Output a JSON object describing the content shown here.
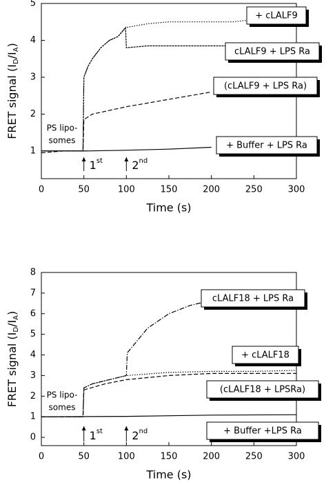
{
  "chart_data": [
    {
      "type": "line",
      "xlabel": "Time (s)",
      "ylabel": [
        "FRET signal (I",
        "D",
        "/I",
        "A",
        ")"
      ],
      "xlim": [
        0,
        300
      ],
      "ylim": [
        0.25,
        5
      ],
      "xticks": [
        0,
        50,
        100,
        150,
        200,
        250,
        300
      ],
      "yticks": [
        1,
        2,
        3,
        4,
        5
      ],
      "series": [
        {
          "name": "+ cLALF9",
          "color": "#000000",
          "linestyle": "dotted",
          "x": [
            0,
            25,
            49,
            50,
            55,
            60,
            70,
            80,
            90,
            100,
            125,
            150,
            175,
            200,
            225,
            245
          ],
          "values": [
            1.0,
            1.0,
            1.0,
            3.0,
            3.3,
            3.5,
            3.8,
            4.0,
            4.1,
            4.35,
            4.45,
            4.5,
            4.5,
            4.5,
            4.5,
            4.55
          ]
        },
        {
          "name": "cLALF9 + LPS Ra",
          "color": "#000000",
          "linestyle": "densely-dotted",
          "x": [
            0,
            25,
            49,
            50,
            55,
            60,
            70,
            80,
            90,
            99,
            100,
            125,
            150,
            175,
            200,
            225,
            245
          ],
          "values": [
            1.0,
            1.0,
            1.0,
            3.0,
            3.3,
            3.5,
            3.8,
            4.0,
            4.1,
            4.35,
            3.8,
            3.85,
            3.85,
            3.85,
            3.85,
            3.85,
            3.85
          ]
        },
        {
          "name": "(cLALF9 + LPS Ra)",
          "color": "#000000",
          "linestyle": "dashed",
          "x": [
            0,
            25,
            49,
            50,
            60,
            80,
            100,
            125,
            150,
            175,
            200
          ],
          "values": [
            0.95,
            1.0,
            1.0,
            1.85,
            2.0,
            2.1,
            2.2,
            2.3,
            2.4,
            2.5,
            2.6
          ]
        },
        {
          "name": "+ Buffer + LPS Ra",
          "color": "#000000",
          "linestyle": "solid",
          "x": [
            0,
            50,
            100,
            150,
            200
          ],
          "values": [
            1.0,
            1.0,
            1.02,
            1.05,
            1.1
          ]
        }
      ],
      "annotation": [
        "PS lipo-",
        "somes"
      ],
      "arrows": [
        {
          "x": 50,
          "label": "1",
          "sup": "st"
        },
        {
          "x": 100,
          "label": "2",
          "sup": "nd"
        }
      ]
    },
    {
      "type": "line",
      "xlabel": "Time (s)",
      "ylabel": [
        "FRET signal (I",
        "D",
        "/I",
        "A",
        ")"
      ],
      "xlim": [
        0,
        300
      ],
      "ylim": [
        -0.4,
        8
      ],
      "xticks": [
        0,
        50,
        100,
        150,
        200,
        250,
        300
      ],
      "yticks": [
        0,
        1,
        2,
        3,
        4,
        5,
        6,
        7,
        8
      ],
      "series": [
        {
          "name": "cLALF18 + LPS Ra",
          "color": "#000000",
          "linestyle": "dash-dot",
          "x": [
            0,
            49,
            50,
            60,
            80,
            100,
            101,
            125,
            150,
            175,
            195
          ],
          "values": [
            1.0,
            1.0,
            2.4,
            2.6,
            2.8,
            3.0,
            4.1,
            5.3,
            6.0,
            6.4,
            6.6
          ]
        },
        {
          "name": "+ cLALF18",
          "color": "#000000",
          "linestyle": "dotted",
          "x": [
            0,
            49,
            50,
            60,
            80,
            100,
            150,
            200,
            250,
            300
          ],
          "values": [
            1.0,
            1.0,
            2.4,
            2.6,
            2.8,
            3.0,
            3.15,
            3.2,
            3.2,
            3.25
          ]
        },
        {
          "name": "(cLALF18 + LPSRa)",
          "color": "#000000",
          "linestyle": "dashed",
          "x": [
            0,
            49,
            50,
            75,
            100,
            150,
            200,
            250,
            300
          ],
          "values": [
            1.0,
            1.0,
            2.3,
            2.6,
            2.8,
            3.0,
            3.1,
            3.1,
            3.1
          ]
        },
        {
          "name": "+ Buffer +LPS Ra",
          "color": "#000000",
          "linestyle": "solid",
          "x": [
            0,
            100,
            200,
            300
          ],
          "values": [
            1.0,
            1.02,
            1.08,
            1.1
          ]
        }
      ],
      "annotation": [
        "PS lipo-",
        "somes"
      ],
      "arrows": [
        {
          "x": 50,
          "label": "1",
          "sup": "st"
        },
        {
          "x": 100,
          "label": "2",
          "sup": "nd"
        }
      ]
    }
  ]
}
